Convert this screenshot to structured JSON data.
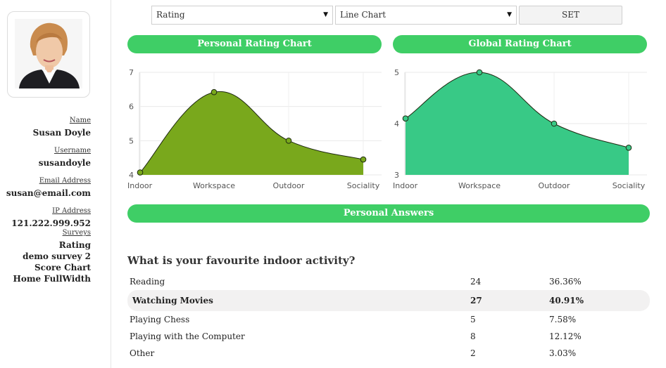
{
  "profile": {
    "name_label": "Name",
    "name": "Susan Doyle",
    "username_label": "Username",
    "username": "susandoyle",
    "email_label": "Email Address",
    "email": "susan@email.com",
    "ip_label": "IP Address",
    "ip": "121.222.999.952",
    "surveys_label": "Surveys",
    "surveys": [
      "Rating",
      "demo survey 2",
      "Score Chart",
      "Home FullWidth"
    ]
  },
  "controls": {
    "survey_select": "Rating",
    "chart_type_select": "Line Chart",
    "set_label": "SET"
  },
  "personal_chart_title": "Personal Rating Chart",
  "global_chart_title": "Global Rating Chart",
  "answers_title": "Personal Answers",
  "colors": {
    "accent_green": "#3fce66",
    "personal_fill": "#79a81c",
    "global_fill": "#38c986"
  },
  "chart_data": [
    {
      "type": "area",
      "categories": [
        "Indoor",
        "Workspace",
        "Outdoor",
        "Sociality"
      ],
      "values": [
        4.07,
        6.42,
        5.0,
        4.45
      ],
      "ylim": [
        4,
        7
      ],
      "yticks": [
        "4",
        "5",
        "6",
        "7"
      ],
      "grid": true
    },
    {
      "type": "area",
      "categories": [
        "Indoor",
        "Workspace",
        "Outdoor",
        "Sociality"
      ],
      "values": [
        4.1,
        5.0,
        4.0,
        3.53
      ],
      "ylim": [
        3,
        5
      ],
      "yticks": [
        "3",
        "4",
        "5"
      ],
      "grid": true
    }
  ],
  "question": "What is your favourite indoor activity?",
  "answers": [
    {
      "label": "Reading",
      "count": "24",
      "percent": "36.36%"
    },
    {
      "label": "Watching Movies",
      "count": "27",
      "percent": "40.91%"
    },
    {
      "label": "Playing Chess",
      "count": "5",
      "percent": "7.58%"
    },
    {
      "label": "Playing with the Computer",
      "count": "8",
      "percent": "12.12%"
    },
    {
      "label": "Other",
      "count": "2",
      "percent": "3.03%"
    }
  ]
}
